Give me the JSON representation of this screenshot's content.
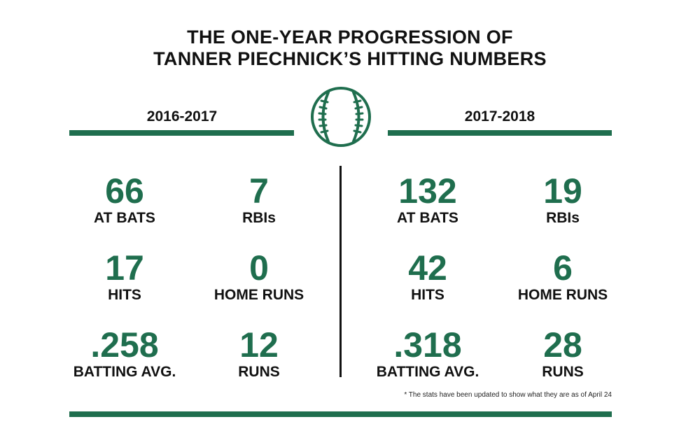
{
  "title": {
    "line1": "THE ONE-YEAR PROGRESSION OF",
    "line2": "TANNER PIECHNICK’S HITTING NUMBERS"
  },
  "colors": {
    "accent": "#1f6e4e",
    "text": "#111111"
  },
  "icon": "baseball-icon",
  "seasons": [
    {
      "label": "2016-2017",
      "stats": [
        {
          "value": "66",
          "label": "AT BATS"
        },
        {
          "value": "7",
          "label": "RBIs"
        },
        {
          "value": "17",
          "label": "HITS"
        },
        {
          "value": "0",
          "label": "HOME RUNS"
        },
        {
          "value": ".258",
          "label": "BATTING AVG."
        },
        {
          "value": "12",
          "label": "RUNS"
        }
      ]
    },
    {
      "label": "2017-2018",
      "stats": [
        {
          "value": "132",
          "label": "AT BATS"
        },
        {
          "value": "19",
          "label": "RBIs"
        },
        {
          "value": "42",
          "label": "HITS"
        },
        {
          "value": "6",
          "label": "HOME RUNS"
        },
        {
          "value": ".318",
          "label": "BATTING AVG."
        },
        {
          "value": "28",
          "label": "RUNS"
        }
      ]
    }
  ],
  "footnote": "* The stats have been updated to show what they are as of April 24"
}
